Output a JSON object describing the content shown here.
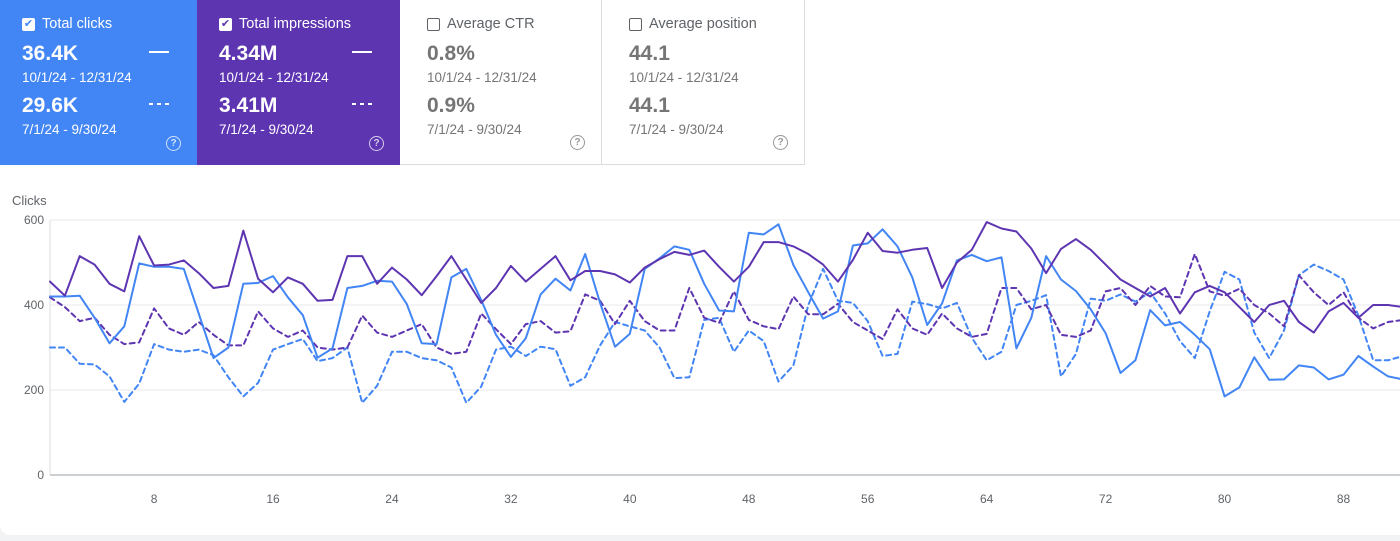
{
  "metrics": {
    "clicks": {
      "label": "Total clicks",
      "current_value": "36.4K",
      "current_range": "10/1/24 - 12/31/24",
      "previous_value": "29.6K",
      "previous_range": "7/1/24 - 9/30/24",
      "help": "?",
      "selected": true,
      "color": "#4285f4"
    },
    "impressions": {
      "label": "Total impressions",
      "current_value": "4.34M",
      "current_range": "10/1/24 - 12/31/24",
      "previous_value": "3.41M",
      "previous_range": "7/1/24 - 9/30/24",
      "help": "?",
      "selected": true,
      "color": "#5e35b1"
    },
    "ctr": {
      "label": "Average CTR",
      "current_value": "0.8%",
      "current_range": "10/1/24 - 12/31/24",
      "previous_value": "0.9%",
      "previous_range": "7/1/24 - 9/30/24",
      "help": "?",
      "selected": false
    },
    "position": {
      "label": "Average position",
      "current_value": "44.1",
      "current_range": "10/1/24 - 12/31/24",
      "previous_value": "44.1",
      "previous_range": "7/1/24 - 9/30/24",
      "help": "?",
      "selected": false
    }
  },
  "chart_data": {
    "type": "line",
    "ylabel": "Clicks",
    "ylim": [
      0,
      600
    ],
    "yticks": [
      "0",
      "200",
      "400",
      "600"
    ],
    "xticks": [
      "8",
      "16",
      "24",
      "32",
      "40",
      "48",
      "56",
      "64",
      "72",
      "80",
      "88"
    ],
    "grid": true,
    "x": [
      1,
      2,
      3,
      4,
      5,
      6,
      7,
      8,
      9,
      10,
      11,
      12,
      13,
      14,
      15,
      16,
      17,
      18,
      19,
      20,
      21,
      22,
      23,
      24,
      25,
      26,
      27,
      28,
      29,
      30,
      31,
      32,
      33,
      34,
      35,
      36,
      37,
      38,
      39,
      40,
      41,
      42,
      43,
      44,
      45,
      46,
      47,
      48,
      49,
      50,
      51,
      52,
      53,
      54,
      55,
      56,
      57,
      58,
      59,
      60,
      61,
      62,
      63,
      64,
      65,
      66,
      67,
      68,
      69,
      70,
      71,
      72,
      73,
      74,
      75,
      76,
      77,
      78,
      79,
      80,
      81,
      82,
      83,
      84,
      85,
      86,
      87,
      88,
      89,
      90,
      91,
      92
    ],
    "series": [
      {
        "name": "Total clicks",
        "color": "#4285f4",
        "style": "solid",
        "values": [
          420,
          420,
          422,
          370,
          310,
          350,
          498,
          490,
          490,
          485,
          380,
          275,
          300,
          450,
          452,
          468,
          418,
          376,
          276,
          298,
          440,
          445,
          457,
          455,
          402,
          310,
          308,
          465,
          485,
          412,
          330,
          278,
          322,
          425,
          462,
          434,
          520,
          405,
          302,
          332,
          485,
          510,
          538,
          530,
          450,
          387,
          385,
          570,
          566,
          590,
          494,
          430,
          368,
          385,
          540,
          545,
          578,
          538,
          465,
          353,
          404,
          505,
          518,
          503,
          512,
          298,
          370,
          515,
          460,
          433,
          390,
          334,
          240,
          270,
          388,
          352,
          360,
          330,
          296,
          185,
          206,
          277,
          224,
          225,
          258,
          253,
          225,
          236,
          280,
          255,
          232,
          225
        ]
      },
      {
        "name": "Total impressions",
        "color": "#5e35b1",
        "style": "solid",
        "values": [
          455,
          422,
          515,
          495,
          450,
          432,
          562,
          493,
          495,
          505,
          475,
          440,
          445,
          575,
          462,
          430,
          465,
          450,
          410,
          412,
          515,
          515,
          450,
          488,
          460,
          423,
          468,
          515,
          460,
          405,
          440,
          492,
          455,
          485,
          515,
          458,
          480,
          480,
          472,
          453,
          488,
          508,
          525,
          518,
          528,
          490,
          455,
          490,
          548,
          548,
          538,
          520,
          495,
          455,
          506,
          570,
          527,
          523,
          530,
          534,
          440,
          500,
          530,
          595,
          580,
          573,
          533,
          475,
          532,
          555,
          530,
          495,
          460,
          440,
          420,
          440,
          380,
          430,
          445,
          430,
          395,
          360,
          400,
          410,
          360,
          335,
          385,
          405,
          370,
          400,
          400,
          395
        ]
      },
      {
        "name": "Total clicks (7/1/24 - 9/30/24)",
        "color": "#4285f4",
        "style": "dashed",
        "values": [
          300,
          300,
          262,
          260,
          232,
          172,
          215,
          308,
          295,
          290,
          295,
          282,
          230,
          185,
          217,
          295,
          308,
          320,
          268,
          275,
          300,
          170,
          210,
          290,
          290,
          275,
          270,
          253,
          170,
          208,
          295,
          302,
          280,
          302,
          296,
          210,
          230,
          305,
          360,
          350,
          340,
          300,
          228,
          230,
          365,
          370,
          290,
          340,
          315,
          220,
          258,
          400,
          485,
          410,
          405,
          362,
          280,
          285,
          408,
          402,
          392,
          405,
          323,
          270,
          290,
          400,
          410,
          423,
          232,
          285,
          415,
          410,
          425,
          408,
          430,
          380,
          315,
          275,
          385,
          478,
          460,
          335,
          275,
          340,
          470,
          495,
          480,
          460,
          375,
          270,
          270,
          280
        ]
      },
      {
        "name": "Total impressions (7/1/24 - 9/30/24)",
        "color": "#5e35b1",
        "style": "dashed",
        "values": [
          418,
          395,
          362,
          370,
          330,
          308,
          312,
          392,
          345,
          330,
          360,
          330,
          305,
          305,
          385,
          345,
          325,
          340,
          300,
          295,
          300,
          375,
          335,
          325,
          340,
          355,
          300,
          285,
          290,
          380,
          343,
          308,
          355,
          362,
          335,
          338,
          425,
          410,
          355,
          410,
          362,
          340,
          340,
          440,
          370,
          358,
          432,
          365,
          350,
          343,
          420,
          378,
          378,
          403,
          360,
          340,
          320,
          390,
          345,
          330,
          380,
          345,
          325,
          332,
          440,
          440,
          390,
          400,
          330,
          325,
          340,
          432,
          440,
          400,
          445,
          420,
          418,
          520,
          432,
          422,
          438,
          400,
          380,
          350,
          470,
          430,
          400,
          430,
          370,
          345,
          360,
          365
        ]
      }
    ]
  }
}
